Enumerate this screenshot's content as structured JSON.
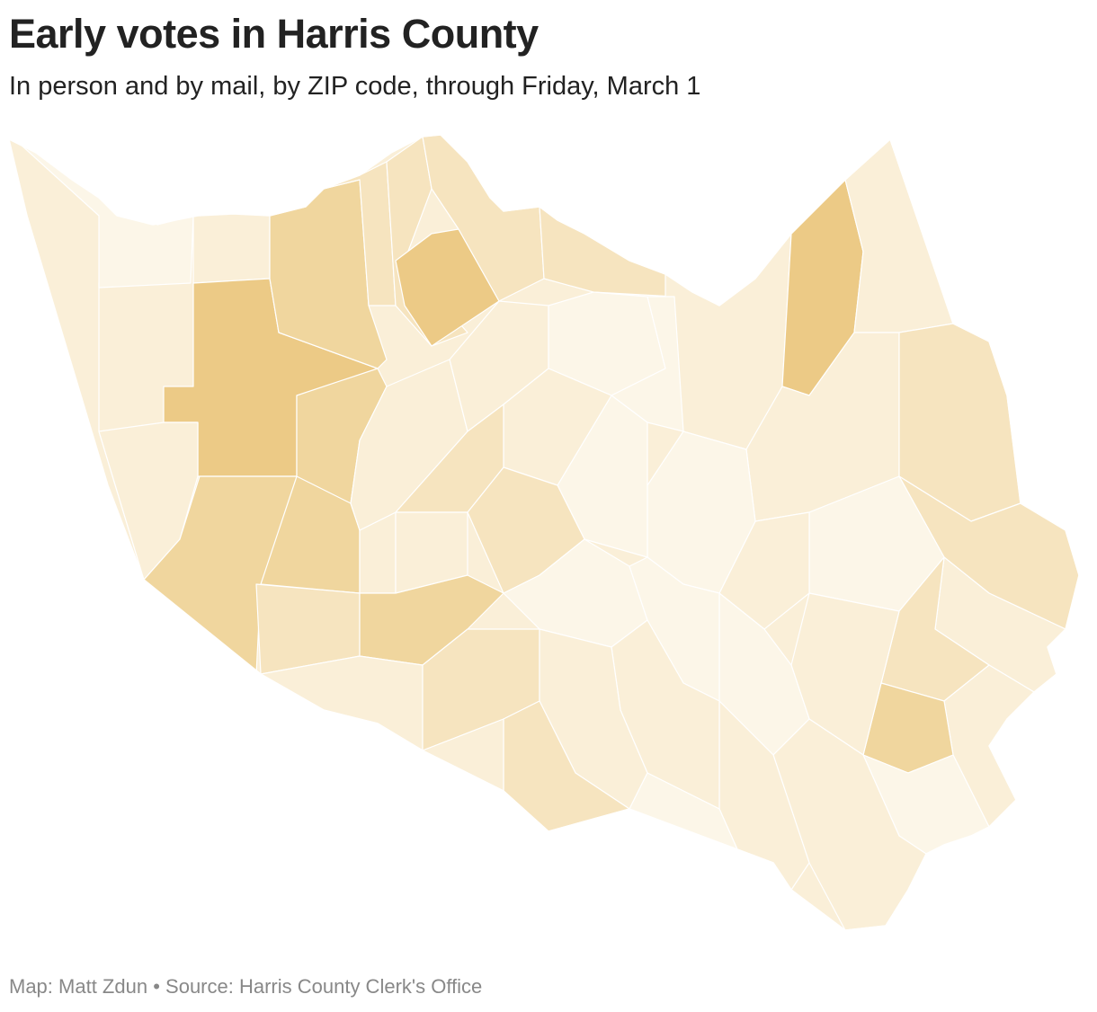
{
  "header": {
    "title": "Early votes in Harris County",
    "subtitle": "In person and by mail, by ZIP code, through Friday, March 1"
  },
  "map": {
    "palette": [
      "#fcf6e8",
      "#faefd8",
      "#f6e4bf",
      "#f0d69e",
      "#ecca86"
    ],
    "stroke_color": "#ffffff"
  },
  "footer": {
    "credit": "Map: Matt Zdun",
    "separator": "•",
    "source": "Source: Harris County Clerk's Office"
  }
}
